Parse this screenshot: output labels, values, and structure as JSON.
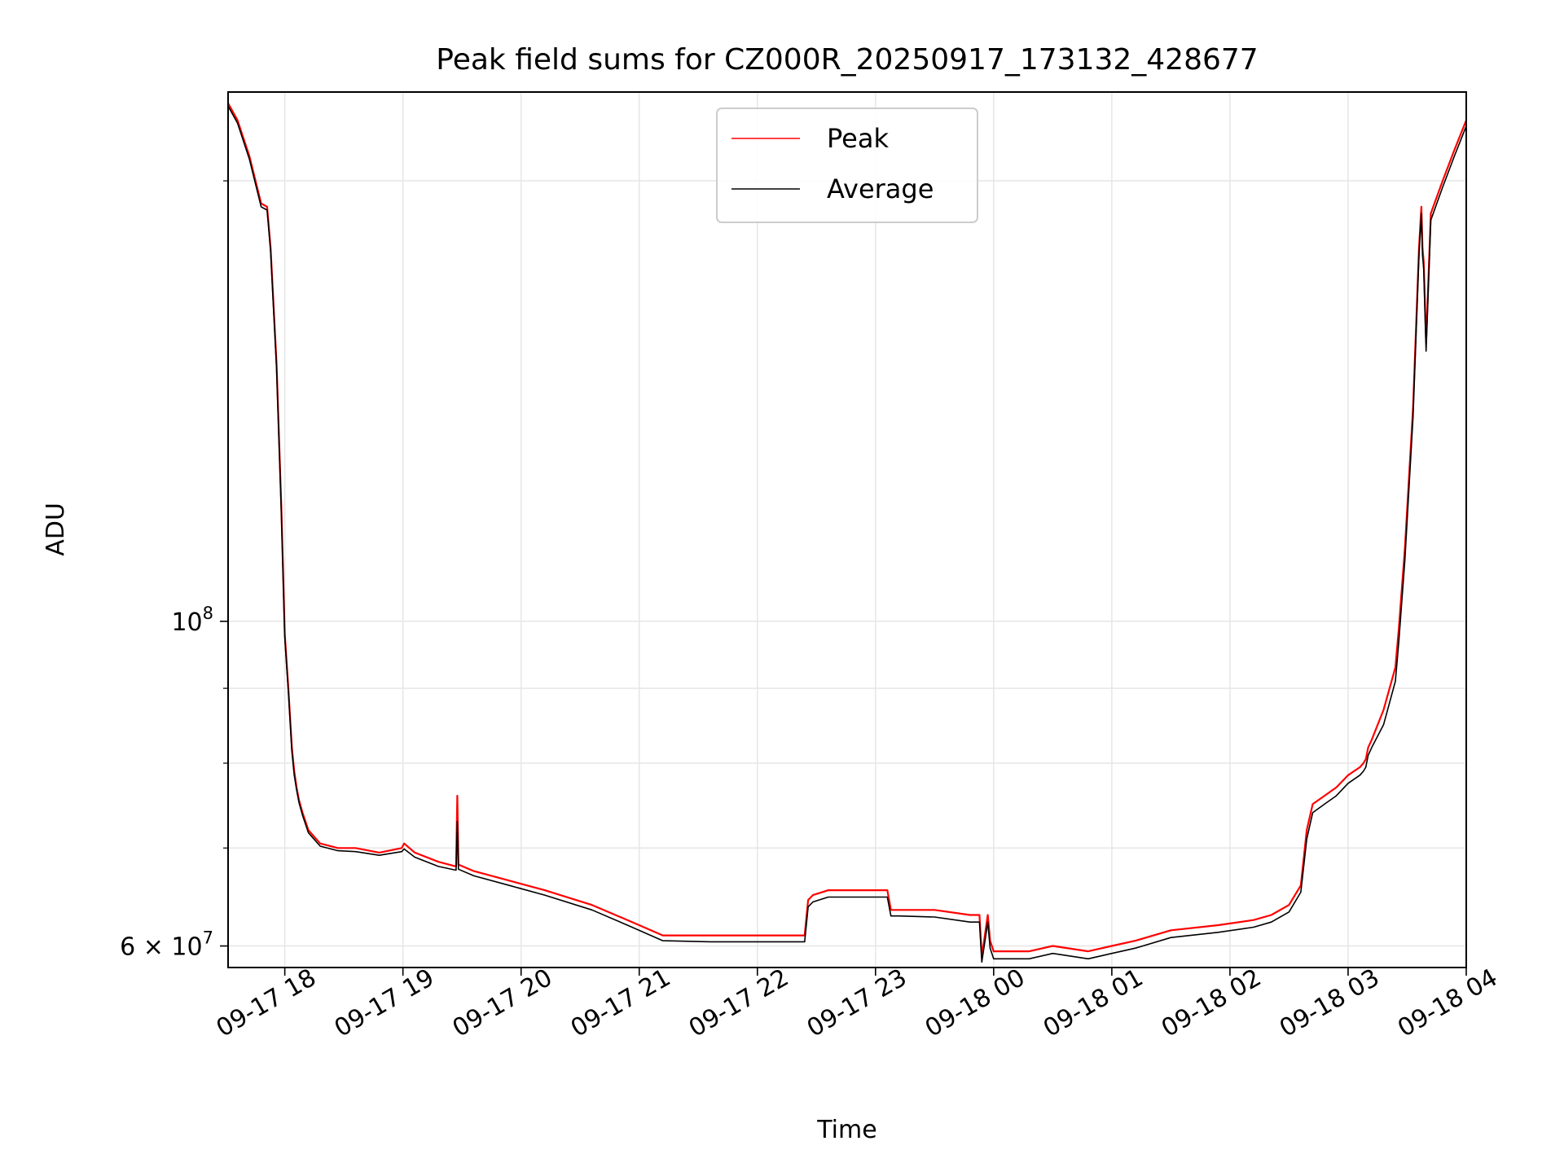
{
  "chart_data": {
    "type": "line",
    "title": "Peak field sums for CZ000R_20250917_173132_428677",
    "xlabel": "Time",
    "ylabel": "ADU",
    "yscale": "log",
    "grid": true,
    "legend_position": "top-center",
    "x_unit": "hours since 09-17 17:00",
    "xlim": [
      0.52,
      11.0
    ],
    "ylim": [
      58000000,
      230000000
    ],
    "x_ticks": [
      {
        "value": 1,
        "label": "09-17 18"
      },
      {
        "value": 2,
        "label": "09-17 19"
      },
      {
        "value": 3,
        "label": "09-17 20"
      },
      {
        "value": 4,
        "label": "09-17 21"
      },
      {
        "value": 5,
        "label": "09-17 22"
      },
      {
        "value": 6,
        "label": "09-17 23"
      },
      {
        "value": 7,
        "label": "09-18 00"
      },
      {
        "value": 8,
        "label": "09-18 01"
      },
      {
        "value": 9,
        "label": "09-18 02"
      },
      {
        "value": 10,
        "label": "09-18 03"
      },
      {
        "value": 11,
        "label": "09-18 04"
      }
    ],
    "y_major_ticks": [
      {
        "value": 60000000,
        "mantissa": "6 × 10",
        "exponent": "7"
      },
      {
        "value": 100000000,
        "mantissa": "10",
        "exponent": "8"
      }
    ],
    "y_minor_ticks": [
      70000000,
      80000000,
      90000000,
      200000000
    ],
    "series": [
      {
        "name": "Peak",
        "color": "#ff0000",
        "x": [
          0.52,
          0.6,
          0.7,
          0.8,
          0.85,
          0.88,
          0.93,
          0.97,
          1.0,
          1.03,
          1.06,
          1.08,
          1.1,
          1.12,
          1.15,
          1.2,
          1.3,
          1.45,
          1.6,
          1.8,
          1.99,
          2.01,
          2.1,
          2.3,
          2.45,
          2.46,
          2.47,
          2.6,
          2.9,
          3.2,
          3.6,
          3.9,
          4.2,
          4.6,
          5.0,
          5.4,
          5.43,
          5.47,
          5.6,
          5.8,
          6.0,
          6.1,
          6.13,
          6.2,
          6.5,
          6.8,
          6.88,
          6.9,
          6.95,
          6.97,
          7.0,
          7.3,
          7.5,
          7.8,
          8.0,
          8.2,
          8.5,
          8.9,
          9.2,
          9.35,
          9.5,
          9.6,
          9.65,
          9.7,
          9.8,
          9.9,
          10.0,
          10.1,
          10.13,
          10.15,
          10.17,
          10.2,
          10.3,
          10.4,
          10.43,
          10.45,
          10.48,
          10.55,
          10.6,
          10.62,
          10.63,
          10.64,
          10.66,
          10.7,
          10.8,
          10.9,
          11.0
        ],
        "values": [
          226000000,
          220000000,
          208000000,
          193000000,
          192000000,
          180000000,
          150000000,
          120000000,
          98000000,
          90000000,
          82000000,
          79000000,
          77000000,
          75500000,
          74000000,
          72000000,
          70500000,
          70000000,
          70000000,
          69500000,
          70000000,
          70500000,
          69500000,
          68500000,
          68000000,
          76000000,
          68200000,
          67500000,
          66500000,
          65500000,
          64000000,
          62500000,
          61000000,
          61000000,
          61000000,
          61000000,
          64500000,
          65000000,
          65500000,
          65500000,
          65500000,
          65500000,
          63500000,
          63500000,
          63500000,
          63000000,
          63000000,
          59000000,
          63000000,
          60500000,
          59500000,
          59500000,
          60000000,
          59500000,
          60000000,
          60500000,
          61500000,
          62000000,
          62500000,
          63000000,
          64000000,
          66000000,
          72000000,
          75000000,
          76000000,
          77000000,
          78500000,
          79500000,
          80000000,
          80500000,
          82000000,
          83000000,
          87000000,
          93000000,
          99000000,
          104000000,
          112000000,
          140000000,
          180000000,
          192000000,
          180000000,
          176000000,
          155000000,
          190000000,
          200000000,
          210000000,
          220000000
        ]
      },
      {
        "name": "Average",
        "color": "#000000",
        "x": [
          0.52,
          0.6,
          0.7,
          0.8,
          0.85,
          0.88,
          0.93,
          0.97,
          1.0,
          1.03,
          1.06,
          1.08,
          1.1,
          1.12,
          1.15,
          1.2,
          1.3,
          1.45,
          1.6,
          1.8,
          1.99,
          2.01,
          2.1,
          2.3,
          2.45,
          2.46,
          2.47,
          2.6,
          2.9,
          3.2,
          3.6,
          3.9,
          4.2,
          4.6,
          5.0,
          5.4,
          5.43,
          5.47,
          5.6,
          5.8,
          6.0,
          6.1,
          6.13,
          6.2,
          6.5,
          6.8,
          6.88,
          6.9,
          6.95,
          6.97,
          7.0,
          7.3,
          7.5,
          7.8,
          8.0,
          8.2,
          8.5,
          8.9,
          9.2,
          9.35,
          9.5,
          9.6,
          9.65,
          9.7,
          9.8,
          9.9,
          10.0,
          10.1,
          10.13,
          10.15,
          10.17,
          10.2,
          10.3,
          10.4,
          10.43,
          10.45,
          10.48,
          10.55,
          10.6,
          10.62,
          10.63,
          10.64,
          10.66,
          10.7,
          10.8,
          10.9,
          11.0
        ],
        "values": [
          225000000,
          219000000,
          207000000,
          192000000,
          191000000,
          179000000,
          149000000,
          119000000,
          97500000,
          89500000,
          81500000,
          78500000,
          76700000,
          75200000,
          73700000,
          71700000,
          70200000,
          69700000,
          69600000,
          69200000,
          69600000,
          69900000,
          69000000,
          68000000,
          67600000,
          73000000,
          67700000,
          67000000,
          66000000,
          65000000,
          63500000,
          62000000,
          60500000,
          60400000,
          60400000,
          60400000,
          63800000,
          64300000,
          64800000,
          64800000,
          64800000,
          64800000,
          62900000,
          62900000,
          62800000,
          62300000,
          62300000,
          58500000,
          62300000,
          59800000,
          58800000,
          58800000,
          59300000,
          58800000,
          59300000,
          59800000,
          60800000,
          61300000,
          61800000,
          62300000,
          63300000,
          65300000,
          71000000,
          74000000,
          75000000,
          76000000,
          77500000,
          78500000,
          79000000,
          79500000,
          81000000,
          82000000,
          85000000,
          91000000,
          97000000,
          102000000,
          110000000,
          138000000,
          178000000,
          190000000,
          178000000,
          174000000,
          153000000,
          188000000,
          198000000,
          208000000,
          218000000
        ]
      }
    ]
  }
}
